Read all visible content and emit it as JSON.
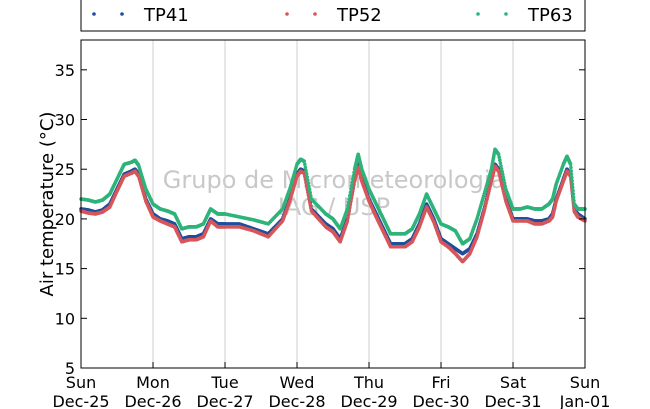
{
  "chart_data": {
    "type": "scatter",
    "title": "",
    "xlabel": "",
    "ylabel": "Air temperature (°C)",
    "ylim": [
      5,
      38
    ],
    "yticks": [
      5,
      10,
      15,
      20,
      25,
      30,
      35
    ],
    "grid": "vertical-day-lines",
    "legend_position": "top",
    "x_ticks": [
      {
        "day": "Sun",
        "date": "Dec-25"
      },
      {
        "day": "Mon",
        "date": "Dec-26"
      },
      {
        "day": "Tue",
        "date": "Dec-27"
      },
      {
        "day": "Wed",
        "date": "Dec-28"
      },
      {
        "day": "Thu",
        "date": "Dec-29"
      },
      {
        "day": "Fri",
        "date": "Dec-30"
      },
      {
        "day": "Sat",
        "date": "Dec-31"
      },
      {
        "day": "Sun",
        "date": "Jan-01"
      }
    ],
    "x_units": "days since Dec-25 00:00",
    "watermark": [
      "Grupo de Micrometeorologia",
      "IAG / USP"
    ],
    "series": [
      {
        "name": "TP41",
        "color": "#1f4e9c",
        "points": [
          [
            0,
            21.0
          ],
          [
            0.1,
            20.9
          ],
          [
            0.2,
            20.7
          ],
          [
            0.3,
            20.9
          ],
          [
            0.4,
            21.5
          ],
          [
            0.5,
            23.0
          ],
          [
            0.6,
            24.5
          ],
          [
            0.7,
            24.8
          ],
          [
            0.75,
            25.0
          ],
          [
            0.8,
            24.5
          ],
          [
            0.9,
            22.0
          ],
          [
            1.0,
            20.5
          ],
          [
            1.1,
            20.0
          ],
          [
            1.2,
            19.8
          ],
          [
            1.3,
            19.5
          ],
          [
            1.4,
            18.0
          ],
          [
            1.5,
            18.2
          ],
          [
            1.6,
            18.2
          ],
          [
            1.7,
            18.5
          ],
          [
            1.8,
            20.0
          ],
          [
            1.9,
            19.5
          ],
          [
            2.0,
            19.5
          ],
          [
            2.2,
            19.5
          ],
          [
            2.4,
            19.0
          ],
          [
            2.6,
            18.5
          ],
          [
            2.8,
            20.0
          ],
          [
            2.9,
            22.0
          ],
          [
            3.0,
            24.5
          ],
          [
            3.05,
            25.0
          ],
          [
            3.1,
            24.8
          ],
          [
            3.2,
            21.0
          ],
          [
            3.4,
            19.5
          ],
          [
            3.5,
            19.0
          ],
          [
            3.6,
            18.0
          ],
          [
            3.7,
            20.0
          ],
          [
            3.8,
            24.0
          ],
          [
            3.85,
            25.5
          ],
          [
            3.9,
            24.0
          ],
          [
            4.0,
            22.0
          ],
          [
            4.1,
            20.5
          ],
          [
            4.2,
            19.0
          ],
          [
            4.3,
            17.5
          ],
          [
            4.5,
            17.5
          ],
          [
            4.6,
            18.0
          ],
          [
            4.7,
            19.5
          ],
          [
            4.8,
            21.5
          ],
          [
            4.9,
            20.0
          ],
          [
            5.0,
            18.0
          ],
          [
            5.1,
            17.5
          ],
          [
            5.2,
            17.0
          ],
          [
            5.3,
            16.5
          ],
          [
            5.4,
            17.0
          ],
          [
            5.5,
            18.5
          ],
          [
            5.6,
            21.0
          ],
          [
            5.7,
            24.0
          ],
          [
            5.75,
            25.5
          ],
          [
            5.8,
            25.0
          ],
          [
            5.9,
            22.0
          ],
          [
            6.0,
            20.0
          ],
          [
            6.1,
            20.0
          ],
          [
            6.2,
            20.0
          ],
          [
            6.3,
            19.8
          ],
          [
            6.4,
            19.8
          ],
          [
            6.5,
            20.0
          ],
          [
            6.55,
            20.5
          ],
          [
            6.6,
            22.0
          ],
          [
            6.7,
            24.0
          ],
          [
            6.75,
            25.0
          ],
          [
            6.8,
            24.5
          ],
          [
            6.85,
            21.0
          ],
          [
            6.9,
            20.5
          ],
          [
            7.0,
            20.0
          ]
        ]
      },
      {
        "name": "TP52",
        "color": "#d6565a",
        "points": [
          [
            0,
            20.8
          ],
          [
            0.1,
            20.6
          ],
          [
            0.2,
            20.5
          ],
          [
            0.3,
            20.7
          ],
          [
            0.4,
            21.2
          ],
          [
            0.5,
            22.8
          ],
          [
            0.6,
            24.3
          ],
          [
            0.7,
            24.6
          ],
          [
            0.75,
            24.8
          ],
          [
            0.8,
            24.3
          ],
          [
            0.9,
            21.8
          ],
          [
            1.0,
            20.2
          ],
          [
            1.1,
            19.8
          ],
          [
            1.2,
            19.5
          ],
          [
            1.3,
            19.2
          ],
          [
            1.4,
            17.7
          ],
          [
            1.5,
            17.9
          ],
          [
            1.6,
            17.9
          ],
          [
            1.7,
            18.2
          ],
          [
            1.8,
            19.8
          ],
          [
            1.9,
            19.2
          ],
          [
            2.0,
            19.2
          ],
          [
            2.2,
            19.2
          ],
          [
            2.4,
            18.8
          ],
          [
            2.6,
            18.2
          ],
          [
            2.8,
            19.8
          ],
          [
            2.9,
            21.8
          ],
          [
            3.0,
            24.3
          ],
          [
            3.05,
            24.8
          ],
          [
            3.1,
            24.6
          ],
          [
            3.2,
            20.8
          ],
          [
            3.4,
            19.2
          ],
          [
            3.5,
            18.7
          ],
          [
            3.6,
            17.7
          ],
          [
            3.7,
            19.8
          ],
          [
            3.8,
            23.8
          ],
          [
            3.85,
            25.2
          ],
          [
            3.9,
            23.8
          ],
          [
            4.0,
            21.8
          ],
          [
            4.1,
            20.2
          ],
          [
            4.2,
            18.7
          ],
          [
            4.3,
            17.2
          ],
          [
            4.5,
            17.2
          ],
          [
            4.6,
            17.7
          ],
          [
            4.7,
            19.2
          ],
          [
            4.8,
            21.2
          ],
          [
            4.9,
            19.7
          ],
          [
            5.0,
            17.7
          ],
          [
            5.1,
            17.2
          ],
          [
            5.2,
            16.5
          ],
          [
            5.3,
            15.7
          ],
          [
            5.4,
            16.5
          ],
          [
            5.5,
            18.2
          ],
          [
            5.6,
            20.8
          ],
          [
            5.7,
            23.8
          ],
          [
            5.75,
            25.3
          ],
          [
            5.8,
            24.8
          ],
          [
            5.9,
            21.8
          ],
          [
            6.0,
            19.8
          ],
          [
            6.1,
            19.8
          ],
          [
            6.2,
            19.8
          ],
          [
            6.3,
            19.5
          ],
          [
            6.4,
            19.5
          ],
          [
            6.5,
            19.8
          ],
          [
            6.55,
            20.2
          ],
          [
            6.6,
            21.8
          ],
          [
            6.7,
            23.8
          ],
          [
            6.75,
            24.8
          ],
          [
            6.8,
            24.3
          ],
          [
            6.85,
            20.8
          ],
          [
            6.9,
            20.2
          ],
          [
            7.0,
            19.8
          ]
        ]
      },
      {
        "name": "TP63",
        "color": "#2eb37a",
        "points": [
          [
            0,
            22.0
          ],
          [
            0.1,
            21.9
          ],
          [
            0.2,
            21.7
          ],
          [
            0.3,
            21.9
          ],
          [
            0.4,
            22.5
          ],
          [
            0.5,
            24.0
          ],
          [
            0.6,
            25.5
          ],
          [
            0.7,
            25.7
          ],
          [
            0.75,
            25.9
          ],
          [
            0.8,
            25.4
          ],
          [
            0.9,
            23.0
          ],
          [
            1.0,
            21.5
          ],
          [
            1.1,
            21.0
          ],
          [
            1.2,
            20.8
          ],
          [
            1.3,
            20.5
          ],
          [
            1.4,
            19.0
          ],
          [
            1.5,
            19.2
          ],
          [
            1.6,
            19.2
          ],
          [
            1.7,
            19.5
          ],
          [
            1.8,
            21.0
          ],
          [
            1.9,
            20.5
          ],
          [
            2.0,
            20.5
          ],
          [
            2.2,
            20.2
          ],
          [
            2.4,
            19.9
          ],
          [
            2.6,
            19.5
          ],
          [
            2.8,
            21.0
          ],
          [
            2.9,
            23.0
          ],
          [
            3.0,
            25.5
          ],
          [
            3.05,
            26.0
          ],
          [
            3.1,
            25.8
          ],
          [
            3.2,
            22.0
          ],
          [
            3.4,
            20.5
          ],
          [
            3.5,
            20.0
          ],
          [
            3.6,
            19.0
          ],
          [
            3.7,
            21.0
          ],
          [
            3.8,
            25.0
          ],
          [
            3.85,
            26.5
          ],
          [
            3.9,
            25.0
          ],
          [
            4.0,
            23.0
          ],
          [
            4.1,
            21.5
          ],
          [
            4.2,
            20.0
          ],
          [
            4.3,
            18.5
          ],
          [
            4.5,
            18.5
          ],
          [
            4.6,
            19.0
          ],
          [
            4.7,
            20.5
          ],
          [
            4.8,
            22.5
          ],
          [
            4.9,
            21.0
          ],
          [
            5.0,
            19.5
          ],
          [
            5.1,
            19.2
          ],
          [
            5.2,
            18.8
          ],
          [
            5.3,
            17.5
          ],
          [
            5.4,
            18.0
          ],
          [
            5.5,
            20.0
          ],
          [
            5.6,
            22.5
          ],
          [
            5.7,
            25.0
          ],
          [
            5.75,
            27.0
          ],
          [
            5.8,
            26.5
          ],
          [
            5.9,
            23.0
          ],
          [
            6.0,
            21.0
          ],
          [
            6.1,
            21.0
          ],
          [
            6.2,
            21.2
          ],
          [
            6.3,
            21.0
          ],
          [
            6.4,
            21.0
          ],
          [
            6.5,
            21.5
          ],
          [
            6.55,
            22.0
          ],
          [
            6.6,
            23.5
          ],
          [
            6.7,
            25.5
          ],
          [
            6.75,
            26.3
          ],
          [
            6.8,
            25.5
          ],
          [
            6.85,
            21.5
          ],
          [
            6.9,
            21.0
          ],
          [
            7.0,
            21.0
          ]
        ]
      }
    ]
  }
}
